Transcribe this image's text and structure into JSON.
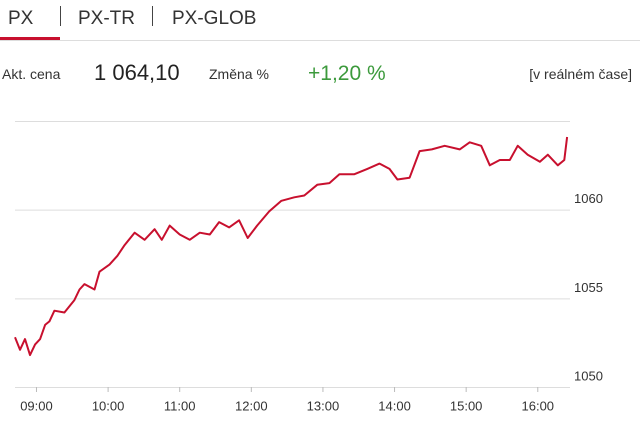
{
  "tabs": [
    "PX",
    "PX-TR",
    "PX-GLOB"
  ],
  "info": {
    "price_label": "Akt. cena",
    "price": "1 064,10",
    "change_label": "Změna %",
    "change": "+1,20 %",
    "realtime": "[v reálném čase]"
  },
  "chart_data": {
    "type": "line",
    "color": "#c8102e",
    "x": [
      8.7,
      8.77,
      8.84,
      8.91,
      8.98,
      9.05,
      9.12,
      9.18,
      9.25,
      9.39,
      9.53,
      9.6,
      9.67,
      9.81,
      9.88,
      10.02,
      10.13,
      10.23,
      10.37,
      10.51,
      10.65,
      10.75,
      10.86,
      11.0,
      11.14,
      11.28,
      11.42,
      11.55,
      11.69,
      11.83,
      11.95,
      12.08,
      12.25,
      12.42,
      12.6,
      12.74,
      12.92,
      13.09,
      13.23,
      13.44,
      13.62,
      13.79,
      13.93,
      14.04,
      14.21,
      14.35,
      14.52,
      14.7,
      14.91,
      15.05,
      15.21,
      15.33,
      15.47,
      15.61,
      15.72,
      15.86,
      16.03,
      16.14,
      16.28,
      16.37,
      16.41
    ],
    "values": [
      1052.8,
      1052.1,
      1052.7,
      1051.8,
      1052.4,
      1052.7,
      1053.5,
      1053.7,
      1054.3,
      1054.2,
      1054.9,
      1055.5,
      1055.8,
      1055.5,
      1056.5,
      1056.9,
      1057.4,
      1058.0,
      1058.7,
      1058.3,
      1058.9,
      1058.3,
      1059.1,
      1058.6,
      1058.3,
      1058.7,
      1058.6,
      1059.3,
      1059.0,
      1059.4,
      1058.4,
      1059.1,
      1059.9,
      1060.5,
      1060.7,
      1060.8,
      1061.4,
      1061.5,
      1062.0,
      1062.0,
      1062.3,
      1062.6,
      1062.3,
      1061.7,
      1061.8,
      1063.3,
      1063.4,
      1063.6,
      1063.4,
      1063.8,
      1063.6,
      1062.5,
      1062.8,
      1062.8,
      1063.6,
      1063.1,
      1062.7,
      1063.1,
      1062.5,
      1062.8,
      1064.1
    ],
    "xlim": [
      8.7,
      16.45
    ],
    "xticks": [
      {
        "value": 9,
        "label": "09:00"
      },
      {
        "value": 10,
        "label": "10:00"
      },
      {
        "value": 11,
        "label": "11:00"
      },
      {
        "value": 12,
        "label": "12:00"
      },
      {
        "value": 13,
        "label": "13:00"
      },
      {
        "value": 14,
        "label": "14:00"
      },
      {
        "value": 15,
        "label": "15:00"
      },
      {
        "value": 16,
        "label": "16:00"
      }
    ],
    "ylim": [
      1050,
      1065
    ],
    "yticks": [
      1050,
      1055,
      1060
    ],
    "grid": true
  }
}
